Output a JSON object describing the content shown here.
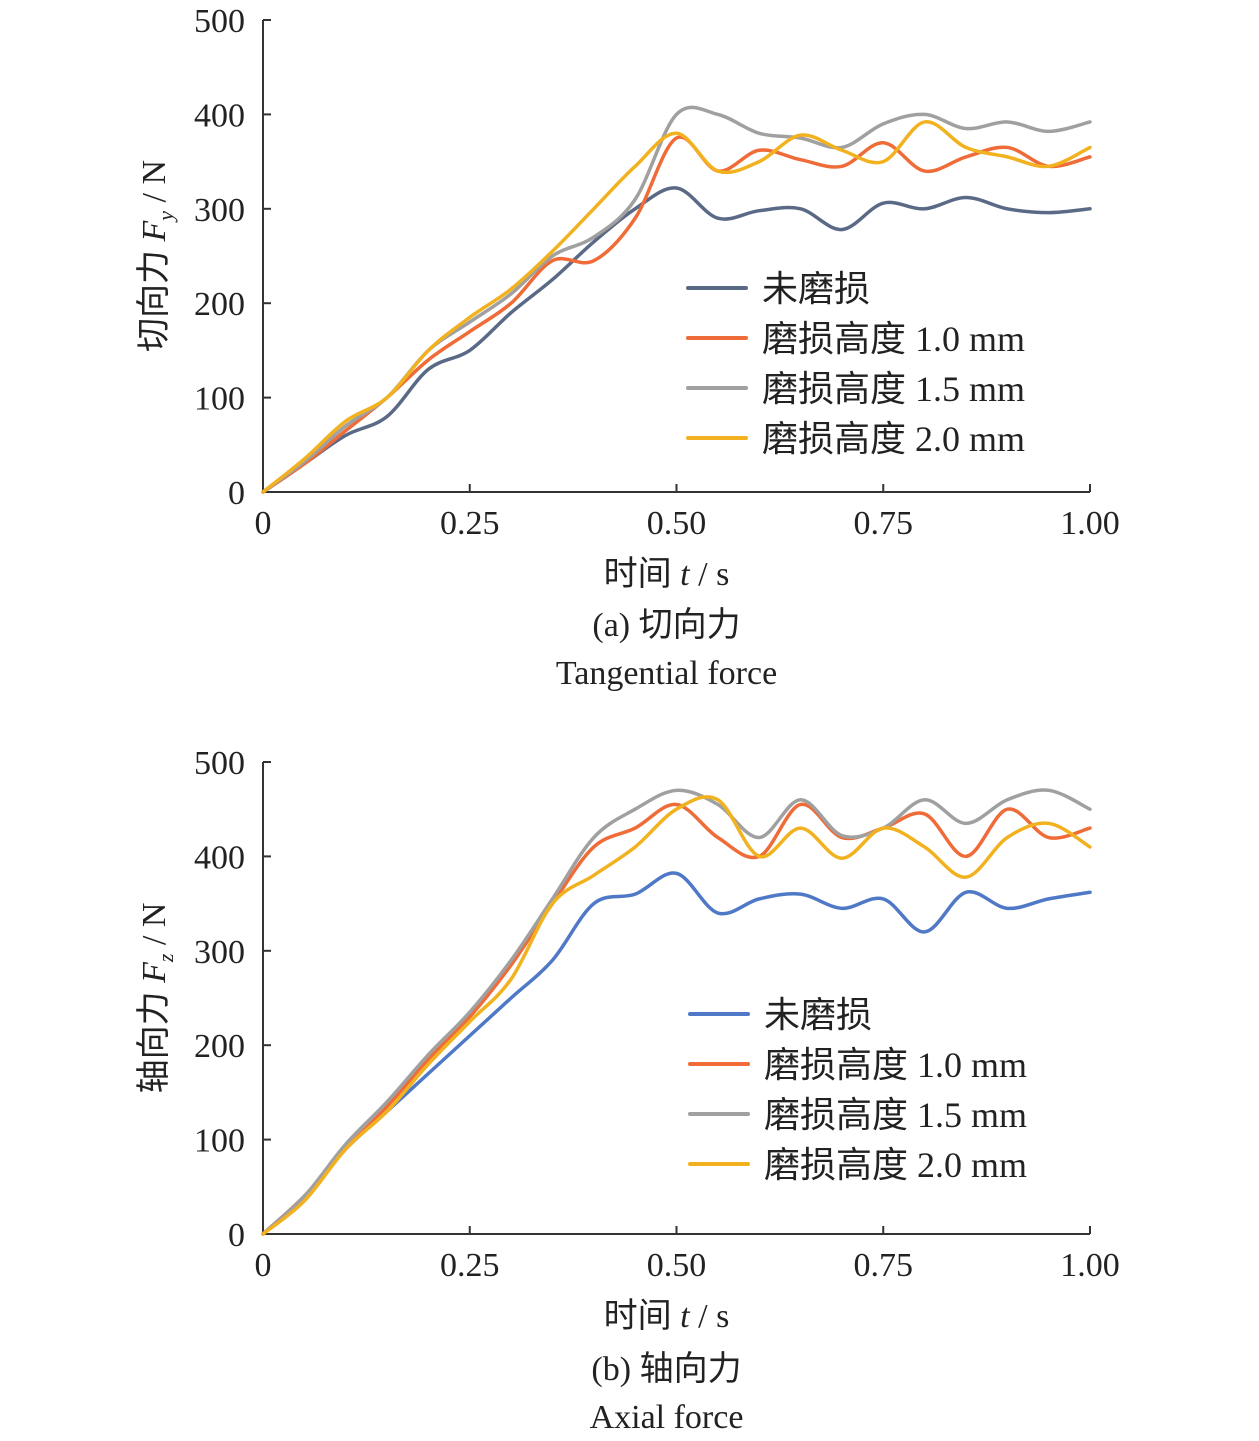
{
  "chart_data": [
    {
      "type": "line",
      "id": "a",
      "ylabel": "切向力 F_y / N",
      "ylabel_main": "切向力 ",
      "ylabel_var": "F",
      "ylabel_sub": "y",
      "ylabel_unit": " / N",
      "xlabel_main": "时间 ",
      "xlabel_var": "t",
      "xlabel_unit": " / s",
      "caption_cn": "(a) 切向力",
      "caption_en": "Tangential force",
      "xlim": [
        0,
        1
      ],
      "ylim": [
        0,
        500
      ],
      "xticks": [
        "0",
        "0.25",
        "0.50",
        "0.75",
        "1.00"
      ],
      "yticks": [
        "0",
        "100",
        "200",
        "300",
        "400",
        "500"
      ],
      "legend_position": "right-middle",
      "series": [
        {
          "name": "未磨损",
          "color": "#5a6a86",
          "x": [
            0,
            0.05,
            0.1,
            0.15,
            0.2,
            0.25,
            0.3,
            0.35,
            0.4,
            0.45,
            0.5,
            0.55,
            0.6,
            0.65,
            0.7,
            0.75,
            0.8,
            0.85,
            0.9,
            0.95,
            1.0
          ],
          "y": [
            0,
            30,
            60,
            80,
            130,
            150,
            190,
            225,
            265,
            300,
            322,
            290,
            298,
            300,
            278,
            306,
            300,
            312,
            300,
            296,
            300
          ]
        },
        {
          "name": "磨损高度 1.0 mm",
          "color": "#ef6b37",
          "x": [
            0,
            0.05,
            0.1,
            0.15,
            0.2,
            0.25,
            0.3,
            0.35,
            0.4,
            0.45,
            0.5,
            0.55,
            0.6,
            0.65,
            0.7,
            0.75,
            0.8,
            0.85,
            0.9,
            0.95,
            1.0
          ],
          "y": [
            0,
            30,
            65,
            100,
            140,
            170,
            200,
            245,
            245,
            290,
            375,
            340,
            362,
            352,
            345,
            370,
            340,
            355,
            365,
            345,
            355
          ]
        },
        {
          "name": "磨损高度 1.5 mm",
          "color": "#a0a0a0",
          "x": [
            0,
            0.05,
            0.1,
            0.15,
            0.2,
            0.25,
            0.3,
            0.35,
            0.4,
            0.45,
            0.5,
            0.55,
            0.6,
            0.65,
            0.7,
            0.75,
            0.8,
            0.85,
            0.9,
            0.95,
            1.0
          ],
          "y": [
            0,
            32,
            70,
            100,
            150,
            180,
            210,
            250,
            270,
            310,
            400,
            400,
            380,
            375,
            365,
            390,
            400,
            385,
            392,
            382,
            392
          ]
        },
        {
          "name": "磨损高度 2.0 mm",
          "color": "#f2b220",
          "x": [
            0,
            0.05,
            0.1,
            0.15,
            0.2,
            0.25,
            0.3,
            0.35,
            0.4,
            0.45,
            0.5,
            0.55,
            0.6,
            0.65,
            0.7,
            0.75,
            0.8,
            0.85,
            0.9,
            0.95,
            1.0
          ],
          "y": [
            0,
            35,
            75,
            100,
            150,
            185,
            215,
            255,
            300,
            345,
            380,
            340,
            350,
            378,
            362,
            350,
            392,
            365,
            355,
            345,
            365
          ]
        }
      ]
    },
    {
      "type": "line",
      "id": "b",
      "ylabel": "轴向力 F_z / N",
      "ylabel_main": "轴向力 ",
      "ylabel_var": "F",
      "ylabel_sub": "z",
      "ylabel_unit": " / N",
      "xlabel_main": "时间 ",
      "xlabel_var": "t",
      "xlabel_unit": " / s",
      "caption_cn": "(b) 轴向力",
      "caption_en": "Axial force",
      "xlim": [
        0,
        1
      ],
      "ylim": [
        0,
        500
      ],
      "xticks": [
        "0",
        "0.25",
        "0.50",
        "0.75",
        "1.00"
      ],
      "yticks": [
        "0",
        "100",
        "200",
        "300",
        "400",
        "500"
      ],
      "legend_position": "right-middle",
      "series": [
        {
          "name": "未磨损",
          "color": "#4f79c6",
          "x": [
            0,
            0.05,
            0.1,
            0.15,
            0.2,
            0.25,
            0.3,
            0.35,
            0.4,
            0.45,
            0.5,
            0.55,
            0.6,
            0.65,
            0.7,
            0.75,
            0.8,
            0.85,
            0.9,
            0.95,
            1.0
          ],
          "y": [
            0,
            40,
            90,
            130,
            170,
            210,
            250,
            290,
            350,
            360,
            382,
            340,
            355,
            360,
            345,
            355,
            320,
            362,
            345,
            355,
            362
          ]
        },
        {
          "name": "磨损高度 1.0 mm",
          "color": "#ef6b37",
          "x": [
            0,
            0.05,
            0.1,
            0.15,
            0.2,
            0.25,
            0.3,
            0.35,
            0.4,
            0.45,
            0.5,
            0.55,
            0.6,
            0.65,
            0.7,
            0.75,
            0.8,
            0.85,
            0.9,
            0.95,
            1.0
          ],
          "y": [
            0,
            40,
            90,
            135,
            185,
            230,
            285,
            350,
            410,
            430,
            455,
            420,
            400,
            455,
            420,
            430,
            445,
            400,
            450,
            420,
            430
          ]
        },
        {
          "name": "磨损高度 1.5 mm",
          "color": "#a0a0a0",
          "x": [
            0,
            0.05,
            0.1,
            0.15,
            0.2,
            0.25,
            0.3,
            0.35,
            0.4,
            0.45,
            0.5,
            0.55,
            0.6,
            0.65,
            0.7,
            0.75,
            0.8,
            0.85,
            0.9,
            0.95,
            1.0
          ],
          "y": [
            0,
            40,
            95,
            140,
            190,
            235,
            290,
            355,
            420,
            450,
            470,
            455,
            420,
            460,
            422,
            430,
            460,
            435,
            460,
            470,
            450
          ]
        },
        {
          "name": "磨损高度 2.0 mm",
          "color": "#f2b220",
          "x": [
            0,
            0.05,
            0.1,
            0.15,
            0.2,
            0.25,
            0.3,
            0.35,
            0.4,
            0.45,
            0.5,
            0.55,
            0.6,
            0.65,
            0.7,
            0.75,
            0.8,
            0.85,
            0.9,
            0.95,
            1.0
          ],
          "y": [
            0,
            35,
            90,
            130,
            180,
            225,
            270,
            350,
            380,
            410,
            450,
            460,
            400,
            430,
            398,
            430,
            410,
            378,
            420,
            435,
            410
          ]
        }
      ]
    }
  ]
}
